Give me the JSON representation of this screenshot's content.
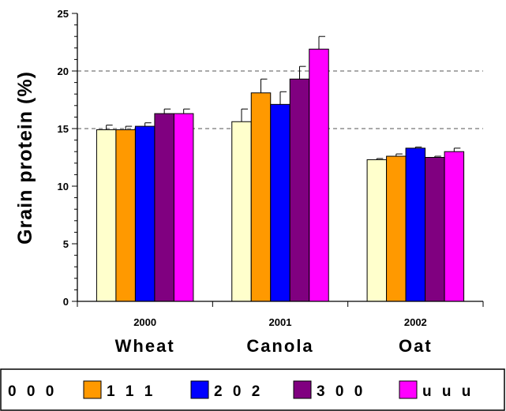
{
  "chart_data": {
    "type": "bar",
    "ylabel": "Grain protein (%)",
    "ylim": [
      0,
      25
    ],
    "yticks": [
      0,
      5,
      10,
      15,
      20,
      25
    ],
    "grid": "horizontal dashed at 15 and 20",
    "categories": [
      {
        "year": "2000",
        "crop": "Wheat"
      },
      {
        "year": "2001",
        "crop": "Canola"
      },
      {
        "year": "2002",
        "crop": "Oat"
      }
    ],
    "series": [
      {
        "name": "0 0 0",
        "color": "#ffffcc",
        "values": [
          14.9,
          15.6,
          12.3
        ],
        "errors": [
          0.4,
          1.1,
          0.1
        ]
      },
      {
        "name": "1 1 1",
        "color": "#ff9900",
        "values": [
          14.9,
          18.1,
          12.6
        ],
        "errors": [
          0.3,
          1.2,
          0.2
        ]
      },
      {
        "name": "2 0 2",
        "color": "#0000ff",
        "values": [
          15.2,
          17.1,
          13.3
        ],
        "errors": [
          0.3,
          1.1,
          0.1
        ]
      },
      {
        "name": "3 0 0",
        "color": "#800080",
        "values": [
          16.3,
          19.3,
          12.5
        ],
        "errors": [
          0.4,
          1.1,
          0.1
        ]
      },
      {
        "name": "u u u",
        "color": "#ff00ff",
        "values": [
          16.3,
          21.9,
          13.0
        ],
        "errors": [
          0.4,
          1.1,
          0.3
        ]
      }
    ],
    "legend_position": "bottom"
  }
}
